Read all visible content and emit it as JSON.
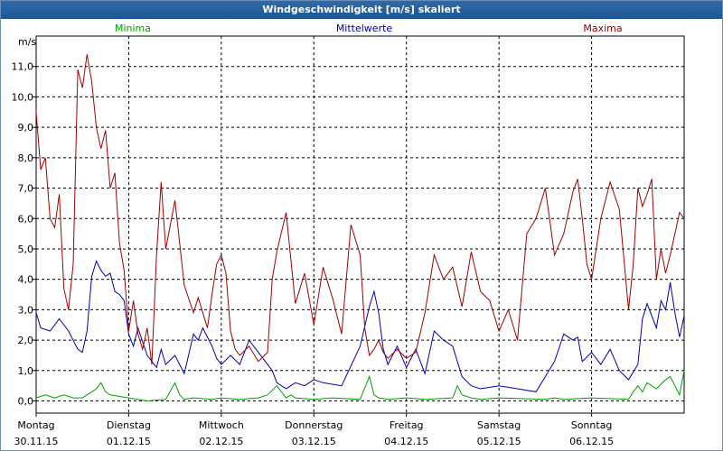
{
  "window": {
    "title": "Windgeschwindigkeit [m/s] skaliert"
  },
  "colors": {
    "minima": "#00a000",
    "mittel": "#0000b0",
    "maxima": "#a00000",
    "titlebar": "#1d5594",
    "grid": "#000000"
  },
  "chart_data": {
    "type": "line",
    "title": "Windgeschwindigkeit [m/s] skaliert",
    "ylabel": "m/s",
    "ylim": [
      -0.4,
      12.0
    ],
    "xlim": [
      0,
      7
    ],
    "yticks": [
      0,
      1,
      2,
      3,
      4,
      5,
      6,
      7,
      8,
      9,
      10,
      11
    ],
    "ytick_labels": [
      "0,0",
      "1,0",
      "2,0",
      "3,0",
      "4,0",
      "5,0",
      "6,0",
      "7,0",
      "8,0",
      "9,0",
      "10,0",
      "11,0"
    ],
    "x_day_labels": [
      {
        "day": "Montag",
        "date": "30.11.15"
      },
      {
        "day": "Dienstag",
        "date": "01.12.15"
      },
      {
        "day": "Mittwoch",
        "date": "02.12.15"
      },
      {
        "day": "Donnerstag",
        "date": "03.12.15"
      },
      {
        "day": "Freitag",
        "date": "04.12.15"
      },
      {
        "day": "Samstag",
        "date": "05.12.15"
      },
      {
        "day": "Sonntag",
        "date": "06.12.15"
      }
    ],
    "legend": [
      "Minima",
      "Mittelwerte",
      "Maxima"
    ],
    "series": [
      {
        "name": "Minima",
        "x": [
          0,
          0.1,
          0.2,
          0.3,
          0.4,
          0.5,
          0.55,
          0.6,
          0.65,
          0.7,
          0.75,
          0.8,
          1.0,
          1.2,
          1.4,
          1.5,
          1.55,
          1.6,
          1.7,
          1.9,
          2.0,
          2.2,
          2.4,
          2.5,
          2.6,
          2.65,
          2.7,
          2.75,
          2.8,
          3.0,
          3.2,
          3.5,
          3.6,
          3.65,
          3.7,
          3.8,
          4.0,
          4.2,
          4.5,
          4.55,
          4.6,
          4.7,
          4.8,
          5.0,
          5.5,
          5.6,
          5.7,
          6.0,
          6.4,
          6.45,
          6.5,
          6.55,
          6.6,
          6.7,
          6.8,
          6.85,
          6.9,
          6.95,
          7.0
        ],
        "values": [
          0.1,
          0.2,
          0.1,
          0.2,
          0.1,
          0.1,
          0.2,
          0.3,
          0.4,
          0.6,
          0.3,
          0.2,
          0.1,
          0.0,
          0.05,
          0.6,
          0.2,
          0.05,
          0.1,
          0.05,
          0.1,
          0.05,
          0.1,
          0.2,
          0.5,
          0.3,
          0.1,
          0.2,
          0.1,
          0.05,
          0.1,
          0.05,
          0.8,
          0.2,
          0.1,
          0.05,
          0.1,
          0.05,
          0.1,
          0.5,
          0.2,
          0.1,
          0.05,
          0.1,
          0.05,
          0.1,
          0.05,
          0.1,
          0.05,
          0.3,
          0.5,
          0.3,
          0.6,
          0.4,
          0.7,
          0.8,
          0.5,
          0.2,
          1.0
        ]
      },
      {
        "name": "Mittelwerte",
        "x": [
          0,
          0.05,
          0.15,
          0.25,
          0.35,
          0.45,
          0.5,
          0.55,
          0.6,
          0.65,
          0.7,
          0.75,
          0.8,
          0.85,
          0.9,
          0.95,
          1.0,
          1.05,
          1.1,
          1.2,
          1.3,
          1.35,
          1.4,
          1.5,
          1.6,
          1.7,
          1.75,
          1.8,
          1.9,
          1.95,
          2.0,
          2.1,
          2.2,
          2.3,
          2.4,
          2.5,
          2.55,
          2.6,
          2.7,
          2.8,
          2.9,
          3.0,
          3.1,
          3.3,
          3.5,
          3.6,
          3.65,
          3.7,
          3.75,
          3.8,
          3.9,
          4.0,
          4.1,
          4.2,
          4.3,
          4.4,
          4.5,
          4.6,
          4.7,
          4.8,
          5.0,
          5.2,
          5.4,
          5.5,
          5.6,
          5.7,
          5.8,
          5.85,
          5.9,
          6.0,
          6.1,
          6.2,
          6.3,
          6.4,
          6.5,
          6.55,
          6.6,
          6.7,
          6.75,
          6.8,
          6.85,
          6.9,
          6.95,
          7.0
        ],
        "values": [
          2.9,
          2.4,
          2.3,
          2.7,
          2.3,
          1.7,
          1.6,
          2.3,
          4.1,
          4.6,
          4.3,
          4.1,
          4.2,
          3.6,
          3.5,
          3.3,
          2.2,
          1.8,
          2.4,
          1.5,
          1.1,
          1.7,
          1.2,
          1.5,
          0.9,
          2.2,
          2.0,
          2.4,
          1.8,
          1.4,
          1.2,
          1.5,
          1.2,
          2.0,
          1.6,
          1.2,
          1.0,
          0.6,
          0.4,
          0.6,
          0.5,
          0.7,
          0.6,
          0.5,
          1.8,
          3.1,
          3.6,
          2.9,
          1.7,
          1.2,
          1.8,
          1.1,
          1.7,
          0.9,
          2.3,
          2.0,
          1.8,
          0.8,
          0.5,
          0.4,
          0.5,
          0.4,
          0.3,
          0.8,
          1.3,
          2.2,
          2.0,
          2.1,
          1.3,
          1.6,
          1.2,
          1.7,
          1.0,
          0.7,
          1.2,
          2.7,
          3.2,
          2.4,
          3.3,
          3.0,
          3.9,
          2.9,
          2.1,
          2.8
        ]
      },
      {
        "name": "Maxima",
        "x": [
          0,
          0.05,
          0.1,
          0.15,
          0.2,
          0.25,
          0.3,
          0.35,
          0.4,
          0.45,
          0.5,
          0.55,
          0.6,
          0.65,
          0.7,
          0.75,
          0.8,
          0.85,
          0.9,
          0.95,
          1.0,
          1.05,
          1.1,
          1.15,
          1.2,
          1.25,
          1.3,
          1.35,
          1.4,
          1.5,
          1.6,
          1.7,
          1.75,
          1.8,
          1.85,
          1.9,
          1.95,
          2.0,
          2.05,
          2.1,
          2.15,
          2.2,
          2.3,
          2.4,
          2.5,
          2.55,
          2.6,
          2.7,
          2.8,
          2.9,
          3.0,
          3.1,
          3.2,
          3.3,
          3.4,
          3.5,
          3.55,
          3.6,
          3.65,
          3.7,
          3.75,
          3.8,
          3.9,
          4.0,
          4.1,
          4.2,
          4.3,
          4.4,
          4.5,
          4.6,
          4.7,
          4.8,
          4.9,
          5.0,
          5.1,
          5.2,
          5.3,
          5.4,
          5.5,
          5.6,
          5.7,
          5.8,
          5.85,
          5.9,
          5.95,
          6.0,
          6.1,
          6.2,
          6.3,
          6.4,
          6.45,
          6.5,
          6.55,
          6.6,
          6.65,
          6.7,
          6.75,
          6.8,
          6.85,
          6.9,
          6.95,
          7.0
        ],
        "values": [
          9.5,
          7.6,
          8.0,
          6.0,
          5.7,
          6.8,
          3.7,
          3.0,
          4.5,
          10.9,
          10.3,
          11.4,
          10.5,
          9.0,
          8.3,
          8.9,
          7.0,
          7.5,
          5.2,
          4.3,
          2.3,
          3.3,
          2.2,
          1.7,
          2.4,
          1.2,
          4.8,
          7.2,
          5.0,
          6.6,
          3.8,
          2.9,
          3.4,
          2.9,
          2.4,
          3.5,
          4.5,
          4.8,
          4.2,
          2.3,
          1.7,
          1.5,
          1.8,
          1.3,
          1.6,
          4.0,
          4.9,
          6.2,
          3.2,
          4.2,
          2.5,
          4.4,
          3.4,
          2.2,
          5.8,
          4.8,
          2.4,
          1.5,
          1.7,
          2.0,
          1.6,
          1.4,
          1.7,
          1.4,
          1.6,
          2.9,
          4.8,
          4.0,
          4.4,
          3.1,
          4.9,
          3.6,
          3.3,
          2.3,
          3.0,
          2.0,
          5.5,
          6.0,
          7.0,
          4.8,
          5.5,
          6.9,
          7.3,
          6.0,
          4.5,
          4.0,
          6.0,
          7.2,
          6.3,
          3.0,
          4.5,
          7.0,
          6.4,
          6.8,
          7.3,
          4.0,
          5.0,
          4.2,
          4.8,
          5.5,
          6.2,
          6.0
        ]
      }
    ]
  }
}
